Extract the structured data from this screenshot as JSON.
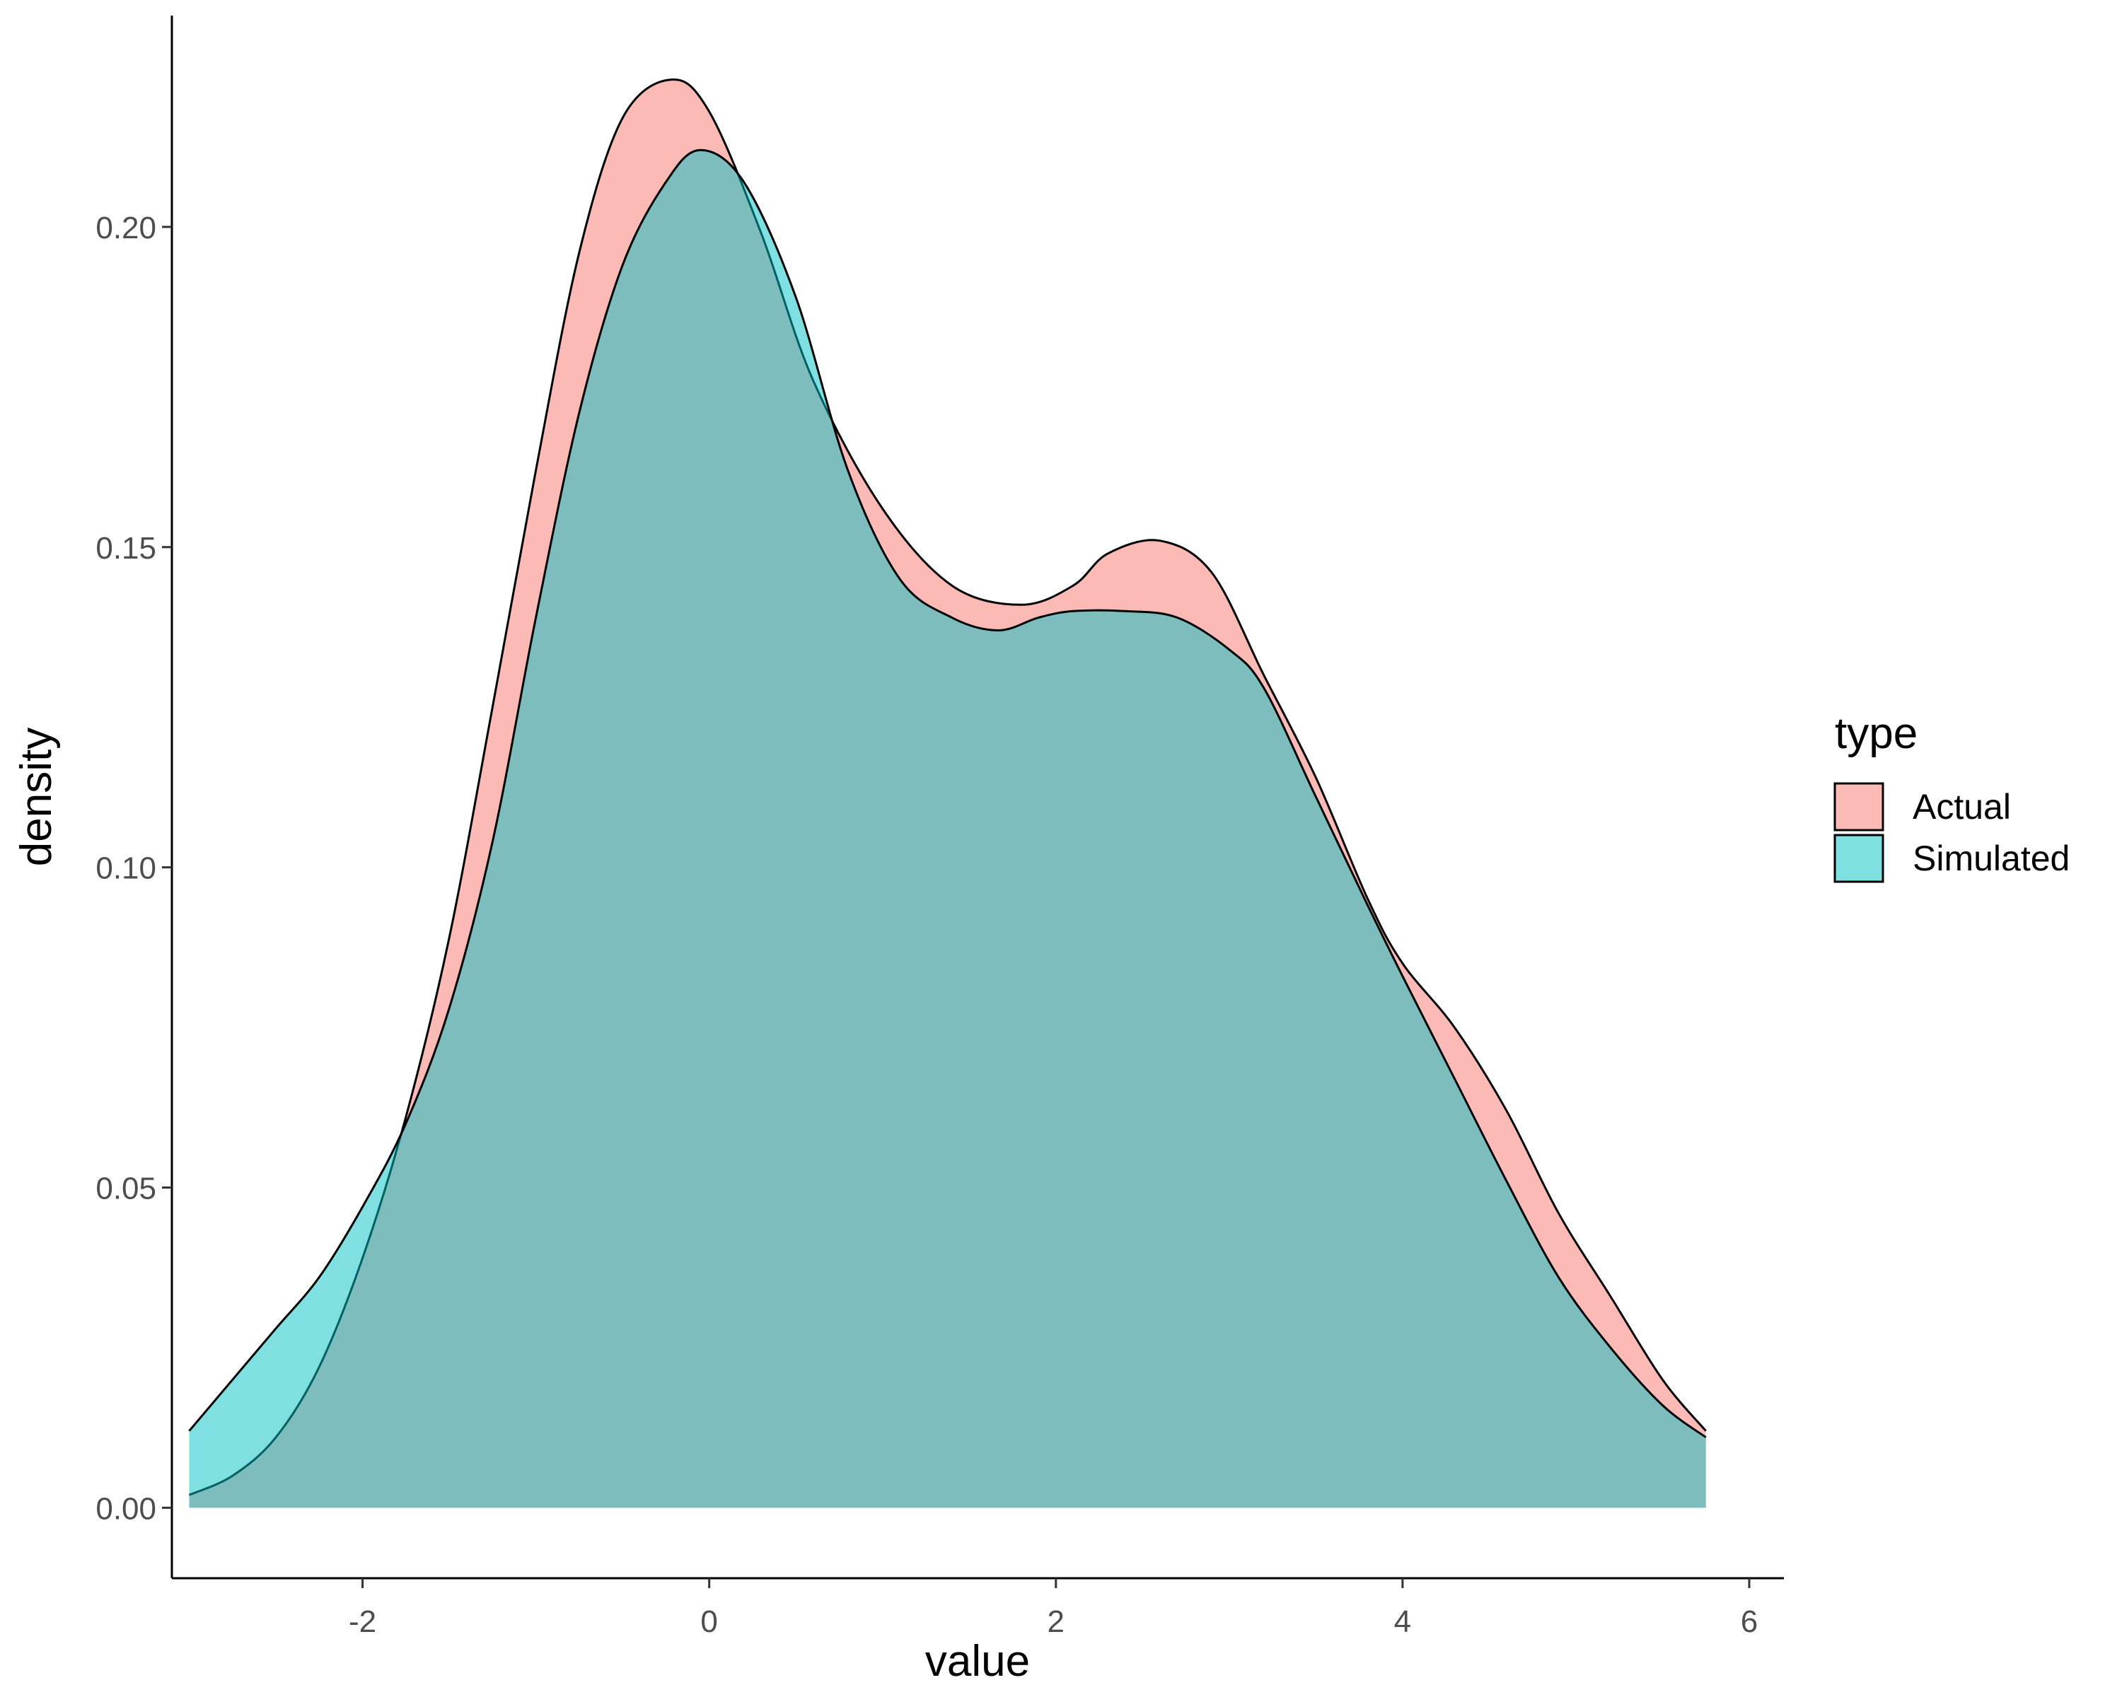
{
  "chart_data": {
    "type": "area",
    "subtype": "density",
    "xlabel": "value",
    "ylabel": "density",
    "xlim": [
      -3.1,
      6.2
    ],
    "ylim": [
      -0.011,
      0.233
    ],
    "x_ticks": [
      "-2",
      "0",
      "2",
      "4",
      "6"
    ],
    "x_tick_values": [
      -2,
      0,
      2,
      4,
      6
    ],
    "y_ticks": [
      "0.00",
      "0.05",
      "0.10",
      "0.15",
      "0.20"
    ],
    "y_tick_values": [
      0,
      0.05,
      0.1,
      0.15,
      0.2
    ],
    "grid": false,
    "legend": {
      "title": "type",
      "placement": "right"
    },
    "series": [
      {
        "name": "Actual",
        "color": "#F8766D",
        "x": [
          -3.0,
          -2.75,
          -2.5,
          -2.25,
          -2.0,
          -1.75,
          -1.5,
          -1.25,
          -1.0,
          -0.75,
          -0.5,
          -0.22,
          0.0,
          0.3,
          0.6,
          1.0,
          1.4,
          1.8,
          2.1,
          2.3,
          2.6,
          2.9,
          3.2,
          3.5,
          3.8,
          4.0,
          4.3,
          4.6,
          4.9,
          5.2,
          5.5,
          5.75
        ],
        "y": [
          0.002,
          0.005,
          0.011,
          0.022,
          0.039,
          0.061,
          0.089,
          0.125,
          0.162,
          0.196,
          0.217,
          0.223,
          0.218,
          0.199,
          0.176,
          0.156,
          0.144,
          0.141,
          0.144,
          0.149,
          0.151,
          0.146,
          0.13,
          0.114,
          0.095,
          0.085,
          0.075,
          0.062,
          0.046,
          0.033,
          0.02,
          0.012
        ]
      },
      {
        "name": "Simulated",
        "color": "#00BFC4",
        "x": [
          -3.0,
          -2.75,
          -2.5,
          -2.25,
          -2.0,
          -1.75,
          -1.5,
          -1.25,
          -1.0,
          -0.75,
          -0.5,
          -0.25,
          -0.05,
          0.2,
          0.5,
          0.8,
          1.1,
          1.4,
          1.67,
          1.9,
          2.1,
          2.4,
          2.7,
          3.0,
          3.2,
          3.5,
          3.8,
          4.0,
          4.3,
          4.6,
          4.9,
          5.2,
          5.5,
          5.75
        ],
        "y": [
          0.012,
          0.02,
          0.028,
          0.036,
          0.047,
          0.06,
          0.078,
          0.104,
          0.139,
          0.171,
          0.194,
          0.207,
          0.212,
          0.207,
          0.189,
          0.162,
          0.145,
          0.139,
          0.137,
          0.139,
          0.14,
          0.14,
          0.139,
          0.134,
          0.128,
          0.111,
          0.094,
          0.083,
          0.067,
          0.051,
          0.036,
          0.025,
          0.016,
          0.011
        ]
      }
    ]
  }
}
